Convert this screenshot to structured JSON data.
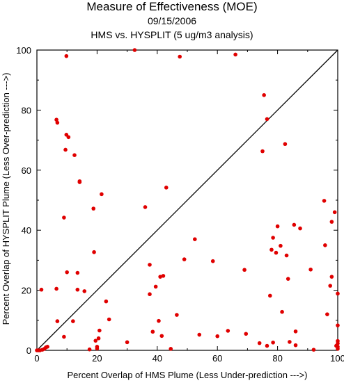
{
  "chart_data": {
    "type": "scatter",
    "title": "Measure of Effectiveness (MOE)",
    "date": "09/15/2006",
    "subtitle": "HMS vs. HYSPLIT  (5 ug/m3 analysis)",
    "xlabel": "Percent Overlap of HMS Plume (Less Under-prediction --->)",
    "ylabel": "Percent Overlap of HYSPLIT Plume (Less Over-prediction --->)",
    "xlim": [
      0,
      100
    ],
    "ylim": [
      0,
      100
    ],
    "xticks": [
      "0",
      "20",
      "40",
      "60",
      "80",
      "100"
    ],
    "yticks": [
      "0",
      "20",
      "40",
      "60",
      "80",
      "100"
    ],
    "point_color": "#e00000",
    "reference_line": "y = x",
    "points": [
      [
        0,
        0
      ],
      [
        0.5,
        0
      ],
      [
        1,
        0
      ],
      [
        1.5,
        20.2
      ],
      [
        1.8,
        0.2
      ],
      [
        2.5,
        0.5
      ],
      [
        3,
        1
      ],
      [
        3.5,
        1.2
      ],
      [
        6.5,
        76.8
      ],
      [
        6.8,
        75.8
      ],
      [
        6.5,
        20.5
      ],
      [
        6.8,
        9.7
      ],
      [
        9,
        44.2
      ],
      [
        9,
        4.5
      ],
      [
        9.5,
        66.8
      ],
      [
        9.8,
        71.8
      ],
      [
        9.8,
        98
      ],
      [
        10,
        26
      ],
      [
        10.5,
        71
      ],
      [
        12,
        9.7
      ],
      [
        12.5,
        65
      ],
      [
        13.5,
        20.2
      ],
      [
        13.5,
        25.8
      ],
      [
        14.2,
        56.3
      ],
      [
        14.2,
        56
      ],
      [
        15.8,
        19.7
      ],
      [
        17.5,
        0.3
      ],
      [
        18.8,
        47.2
      ],
      [
        19,
        32.7
      ],
      [
        19.5,
        3.2
      ],
      [
        20,
        0.6
      ],
      [
        20,
        1.2
      ],
      [
        20.5,
        4
      ],
      [
        20.8,
        6.6
      ],
      [
        21.5,
        52
      ],
      [
        23,
        16.3
      ],
      [
        24,
        10.3
      ],
      [
        30,
        2.7
      ],
      [
        32.5,
        100
      ],
      [
        36,
        47.7
      ],
      [
        37.5,
        28.5
      ],
      [
        37.5,
        18.7
      ],
      [
        38.5,
        6.2
      ],
      [
        39.5,
        21.2
      ],
      [
        41,
        24.5
      ],
      [
        40.5,
        9.8
      ],
      [
        41.5,
        4.8
      ],
      [
        42,
        24.8
      ],
      [
        43,
        54.2
      ],
      [
        44.5,
        0.5
      ],
      [
        46.5,
        11.8
      ],
      [
        47.5,
        97.8
      ],
      [
        49,
        30.3
      ],
      [
        52.5,
        37
      ],
      [
        54,
        5.2
      ],
      [
        58.5,
        29.7
      ],
      [
        60,
        4.7
      ],
      [
        63.5,
        6.5
      ],
      [
        66,
        98.5
      ],
      [
        69,
        26.8
      ],
      [
        69.5,
        5.5
      ],
      [
        74,
        2.4
      ],
      [
        75,
        66.3
      ],
      [
        75.5,
        85
      ],
      [
        76.5,
        77
      ],
      [
        76.5,
        1.5
      ],
      [
        77.5,
        18.2
      ],
      [
        78,
        33.5
      ],
      [
        78.5,
        37.5
      ],
      [
        78.5,
        2.6
      ],
      [
        79.5,
        32.5
      ],
      [
        80,
        41.3
      ],
      [
        81,
        34.8
      ],
      [
        81.5,
        12.8
      ],
      [
        82.5,
        68.7
      ],
      [
        83,
        31.6
      ],
      [
        83.5,
        23.8
      ],
      [
        84,
        2.8
      ],
      [
        85.5,
        41.8
      ],
      [
        86,
        6.3
      ],
      [
        86,
        1.7
      ],
      [
        87.5,
        40.6
      ],
      [
        91,
        26.9
      ],
      [
        92,
        0.2
      ],
      [
        95.5,
        49.8
      ],
      [
        95.8,
        35
      ],
      [
        96.5,
        12
      ],
      [
        97.5,
        21.5
      ],
      [
        98,
        42.8
      ],
      [
        98,
        24.5
      ],
      [
        99,
        46
      ],
      [
        99.5,
        1.5
      ],
      [
        100,
        18.9
      ],
      [
        100,
        8.3
      ],
      [
        100,
        3.1
      ],
      [
        100,
        2.3
      ],
      [
        100,
        1.2
      ],
      [
        100,
        0.5
      ]
    ]
  }
}
